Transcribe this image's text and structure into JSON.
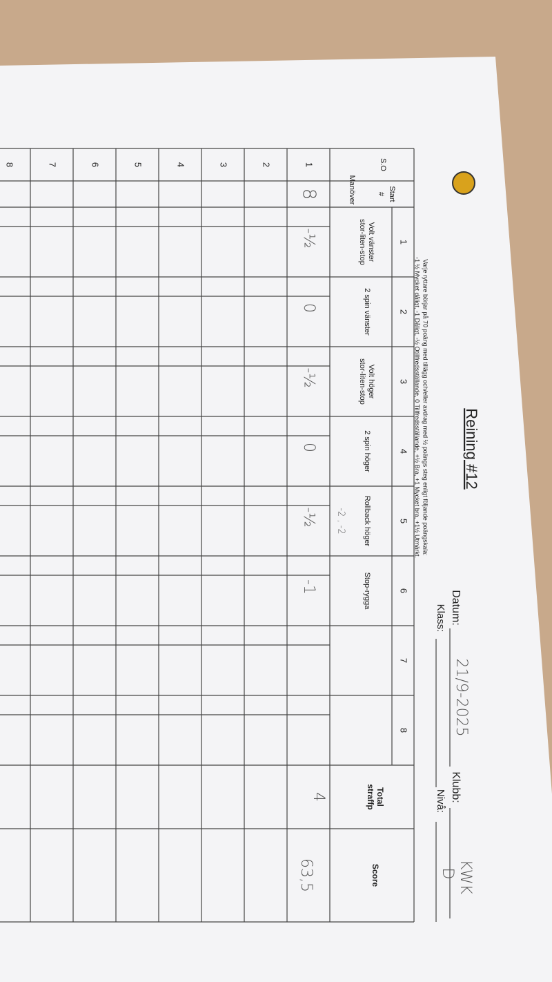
{
  "header": {
    "title": "Reining #12",
    "datum_label": "Datum:",
    "datum": "21/9-2025",
    "klubb_label": "Klubb:",
    "klubb": "KWK",
    "klass_label": "Klass:",
    "niva_label": "Nivå:",
    "niva": "D"
  },
  "instructions": [
    "Varje ryttare börjar på 70 poäng med tillägg och/eller avdrag med ½ poängs steg enligt följande poängskala:",
    "-1 ½ Mycket dåligt, -1 Dåligt, -½ Otillfredsställande, 0 Tillfredsställande, +½ Bra, +1 Mycket bra, +1½ Utmärkt."
  ],
  "table": {
    "so_header": "S.O",
    "start_header": [
      "Start",
      "#"
    ],
    "maneuver_header": "Manöver",
    "total_header": [
      "Total",
      "straffp"
    ],
    "score_header": "Score",
    "columns": [
      {
        "number": "1",
        "name": [
          "Volt vänster",
          "stor-liten-stop"
        ]
      },
      {
        "number": "2",
        "name": [
          "2 spin vänster"
        ]
      },
      {
        "number": "3",
        "name": [
          "Volt höger",
          "stor-liten-stop"
        ]
      },
      {
        "number": "4",
        "name": [
          "2 spin höger"
        ]
      },
      {
        "number": "5",
        "name": [
          "Rollback höger"
        ],
        "note": "-2 , -2"
      },
      {
        "number": "6",
        "name": [
          "Stop-rygga"
        ]
      },
      {
        "number": "7"
      },
      {
        "number": "8"
      }
    ],
    "rows": [
      {
        "label": "1",
        "start": "8",
        "maneuver_scores": [
          "-½",
          "0",
          "-½",
          "0",
          "-½",
          "-1"
        ],
        "total": "4",
        "score": "63,5"
      },
      {
        "label": "2"
      },
      {
        "label": "3"
      },
      {
        "label": "4"
      },
      {
        "label": "5"
      },
      {
        "label": "6"
      },
      {
        "label": "7"
      },
      {
        "label": "8"
      }
    ]
  }
}
